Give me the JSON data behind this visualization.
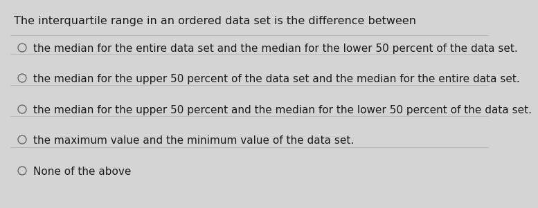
{
  "title": "The interquartile range in an ordered data set is the difference between",
  "options": [
    "the median for the entire data set and the median for the lower 50 percent of the data set.",
    "the median for the upper 50 percent of the data set and the median for the entire data set.",
    "the median for the upper 50 percent and the median for the lower 50 percent of the data set.",
    "the maximum value and the minimum value of the data set.",
    "None of the above"
  ],
  "background_color": "#d4d4d4",
  "title_fontsize": 11.5,
  "option_fontsize": 11.0,
  "title_color": "#1a1a1a",
  "option_color": "#1a1a1a",
  "circle_color": "#666666",
  "line_color": "#bbbbbb"
}
